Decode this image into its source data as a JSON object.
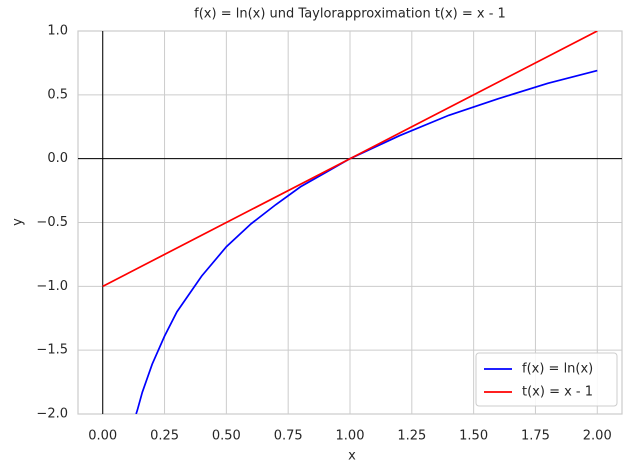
{
  "chart_data": {
    "type": "line",
    "title": "f(x) = ln(x) und Taylorapproximation t(x) = x - 1",
    "xlabel": "x",
    "ylabel": "y",
    "series": [
      {
        "name": "f(x) = ln(x)",
        "color": "#0000ff",
        "x": [
          0.135,
          0.14,
          0.16,
          0.2,
          0.25,
          0.3,
          0.4,
          0.5,
          0.6,
          0.7,
          0.8,
          0.9,
          1.0,
          1.2,
          1.4,
          1.6,
          1.8,
          2.0
        ],
        "values": [
          -2.0,
          -1.97,
          -1.83,
          -1.61,
          -1.39,
          -1.2,
          -0.92,
          -0.69,
          -0.51,
          -0.36,
          -0.22,
          -0.11,
          0.0,
          0.18,
          0.34,
          0.47,
          0.59,
          0.69
        ]
      },
      {
        "name": "t(x) = x - 1",
        "color": "#ff0000",
        "x": [
          0,
          2
        ],
        "values": [
          -1,
          1
        ]
      }
    ],
    "xlim": [
      -0.1,
      2.1
    ],
    "xticks": [
      {
        "value": 0,
        "label": "0.00"
      },
      {
        "value": 0.25,
        "label": "0.25"
      },
      {
        "value": 0.5,
        "label": "0.50"
      },
      {
        "value": 0.75,
        "label": "0.75"
      },
      {
        "value": 1,
        "label": "1.00"
      },
      {
        "value": 1.25,
        "label": "1.25"
      },
      {
        "value": 1.5,
        "label": "1.50"
      },
      {
        "value": 1.75,
        "label": "1.75"
      },
      {
        "value": 2,
        "label": "2.00"
      }
    ],
    "ylim": [
      -2,
      1
    ],
    "yticks": [
      {
        "value": -2,
        "label": "−2.0"
      },
      {
        "value": -1.5,
        "label": "−1.5"
      },
      {
        "value": -1,
        "label": "−1.0"
      },
      {
        "value": -0.5,
        "label": "−0.5"
      },
      {
        "value": 0,
        "label": "0.0"
      },
      {
        "value": 0.5,
        "label": "0.5"
      },
      {
        "value": 1,
        "label": "1.0"
      }
    ],
    "grid": true,
    "legend": "lower right"
  }
}
